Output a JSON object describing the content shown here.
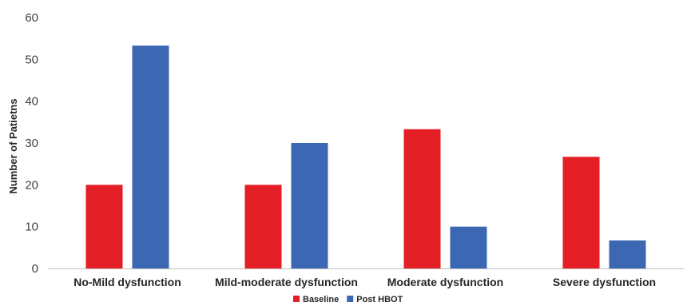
{
  "chart_data": {
    "type": "bar",
    "title": "",
    "xlabel": "",
    "ylabel": "Number of Patietns",
    "ylim": [
      0,
      60
    ],
    "yticks": [
      0,
      10,
      20,
      30,
      40,
      50,
      60
    ],
    "grid": false,
    "legend_position": "bottom-center",
    "categories": [
      "No-Mild dysfunction",
      "Mild-moderate dysfunction",
      "Moderate dysfunction",
      "Severe dysfunction"
    ],
    "series": [
      {
        "name": "Baseline",
        "color": "#e31e24",
        "values": [
          20,
          20,
          33.3,
          26.7
        ]
      },
      {
        "name": "Post HBOT",
        "color": "#3c67b3",
        "values": [
          53.3,
          30,
          10,
          6.7
        ]
      }
    ]
  }
}
